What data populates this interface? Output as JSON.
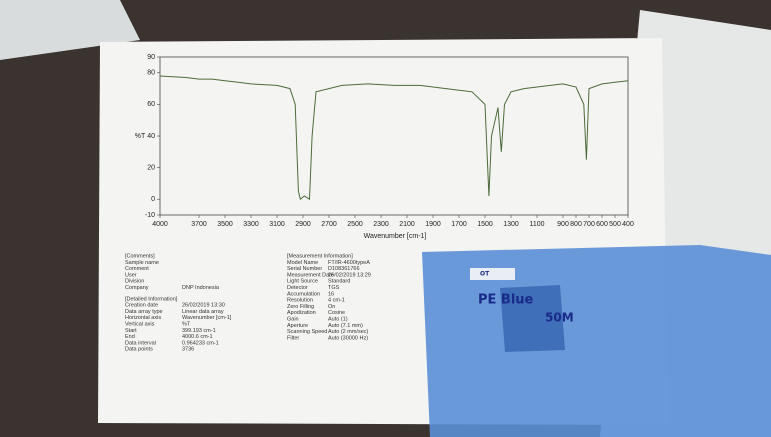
{
  "chart_data": {
    "type": "line",
    "y_label": "%T",
    "x_label": "Wavenumber [cm-1]",
    "x": [
      4000,
      3800,
      3700,
      3600,
      3500,
      3400,
      3300,
      3100,
      3000,
      2960,
      2935,
      2920,
      2890,
      2850,
      2830,
      2800,
      2600,
      2400,
      2200,
      2100,
      2000,
      1900,
      1800,
      1700,
      1600,
      1500,
      1470,
      1450,
      1400,
      1375,
      1350,
      1300,
      1200,
      1100,
      1000,
      900,
      800,
      740,
      720,
      700,
      600,
      500,
      400
    ],
    "values": [
      78,
      77,
      76,
      76,
      75,
      74,
      73,
      72,
      70,
      60,
      5,
      0,
      2,
      0,
      40,
      68,
      72,
      73,
      72,
      72,
      72,
      71,
      70,
      69,
      68,
      60,
      2,
      40,
      58,
      30,
      60,
      68,
      70,
      71,
      72,
      73,
      71,
      60,
      25,
      70,
      73,
      74,
      75
    ],
    "color": "#4d6b3a",
    "xlim": [
      4000,
      400
    ],
    "xticks": [
      4000,
      3700,
      3500,
      3300,
      3100,
      2900,
      2700,
      2500,
      2300,
      2100,
      1900,
      1700,
      1500,
      1300,
      1100,
      900,
      800,
      700,
      600,
      500,
      400
    ],
    "ylim": [
      -10,
      90
    ],
    "yticks": [
      -10,
      0,
      20,
      40,
      60,
      80,
      90
    ]
  },
  "printout": {
    "left": [
      {
        "label": "[Comments]"
      },
      {
        "label": "Sample name"
      },
      {
        "label": "Comment"
      },
      {
        "label": "User"
      },
      {
        "label": "Division"
      },
      {
        "label": "Company",
        "value": "DNP Indonesia"
      },
      {
        "label": "[Detailed Information]"
      },
      {
        "label": "Creation date",
        "value": "26/02/2019 13:30"
      },
      {
        "label": "Data array type",
        "value": "Linear data array"
      },
      {
        "label": "Horizontal axis",
        "value": "Wavenumber [cm-1]"
      },
      {
        "label": "Vertical axis",
        "value": "%T"
      },
      {
        "label": "Start",
        "value": "399.193 cm-1"
      },
      {
        "label": "End",
        "value": "4000.6 cm-1"
      },
      {
        "label": "Data interval",
        "value": "0.964233 cm-1"
      },
      {
        "label": "Data points",
        "value": "3736"
      }
    ],
    "right": [
      {
        "label": "[Measurement Information]"
      },
      {
        "label": "Model Name",
        "value": "FT/IR-4600typeA"
      },
      {
        "label": "Serial Number",
        "value": "D108361766"
      },
      {
        "label": "Measurement Date",
        "value": "26/02/2019 13:29"
      },
      {
        "label": "Light Source",
        "value": "Standard"
      },
      {
        "label": "Detector",
        "value": "TGS"
      },
      {
        "label": "Accumulation",
        "value": "16"
      },
      {
        "label": "Resolution",
        "value": "4 cm-1"
      },
      {
        "label": "Zero Filling",
        "value": "On"
      },
      {
        "label": "Apodization",
        "value": "Cosine"
      },
      {
        "label": "Gain",
        "value": "Auto (1)"
      },
      {
        "label": "Aperture",
        "value": "Auto (7.1 mm)"
      },
      {
        "label": "Scanning Speed",
        "value": "Auto (2 mm/sec)"
      },
      {
        "label": "Filter",
        "value": "Auto (30000 Hz)"
      }
    ]
  },
  "handwriting": {
    "tag": "OT",
    "sample": "PE Blue",
    "thickness": "50M"
  }
}
